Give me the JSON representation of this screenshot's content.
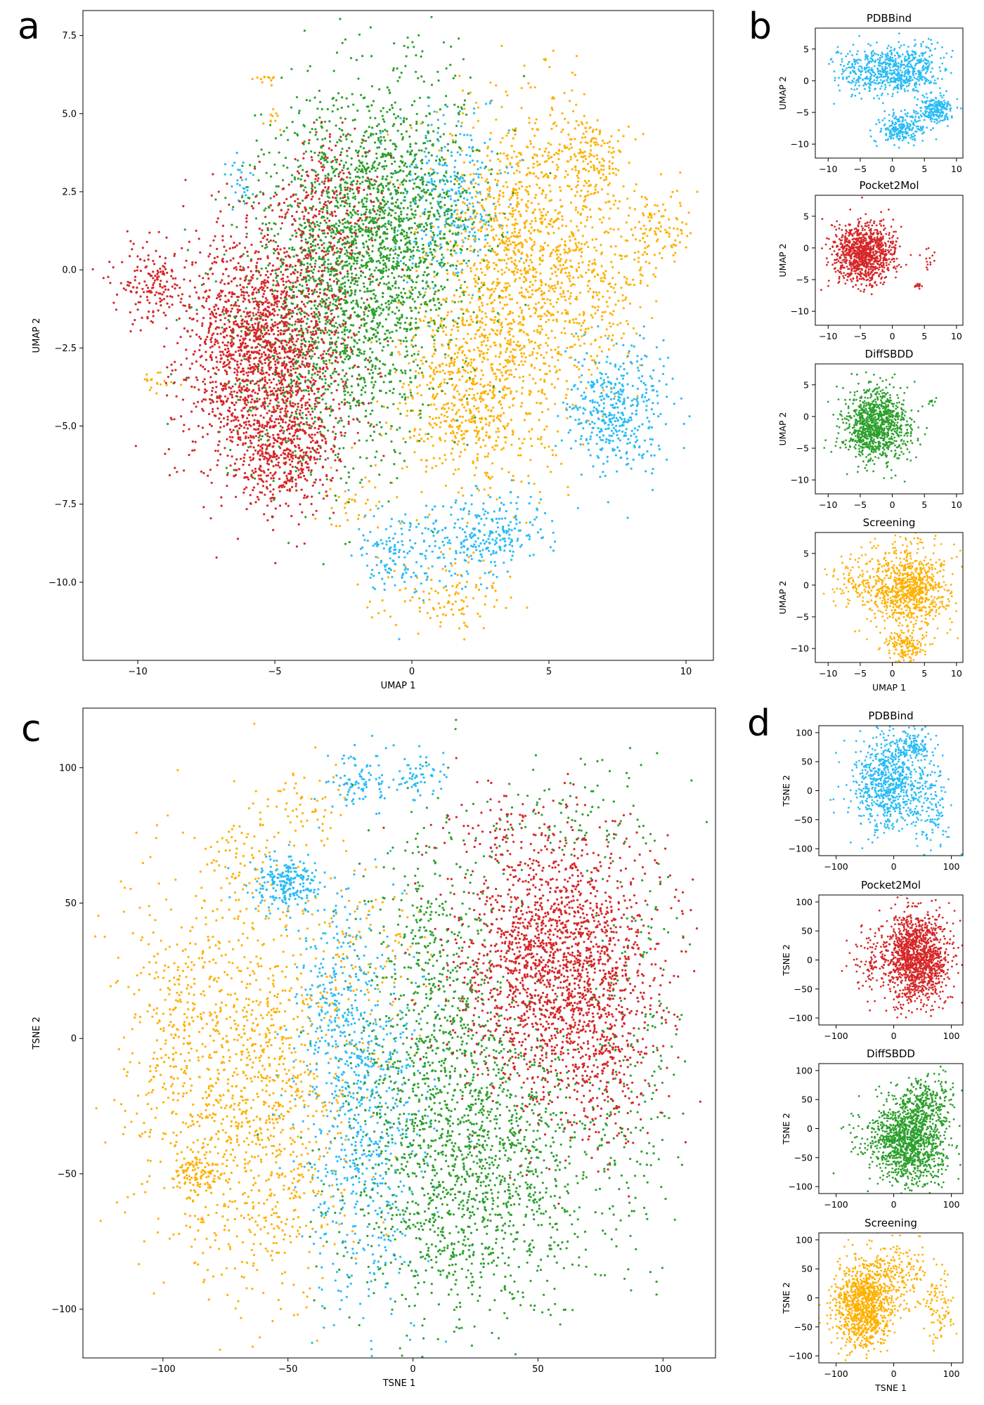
{
  "panel_letters": [
    "a",
    "b",
    "c",
    "d"
  ],
  "palette": {
    "PDBBind": "#29bcf5",
    "Pocket2Mol": "#d62728",
    "DiffSBDD": "#2ca02c",
    "Screening": "#ffb000"
  },
  "chart_data": [
    {
      "id": "a",
      "type": "scatter",
      "title": "",
      "xlabel": "UMAP 1",
      "ylabel": "UMAP 2",
      "xlim": [
        -12,
        11
      ],
      "ylim": [
        -12.5,
        8.3
      ],
      "xticks": [
        -10,
        -5,
        0,
        5,
        10
      ],
      "yticks": [
        -10.0,
        -7.5,
        -5.0,
        -2.5,
        0.0,
        2.5,
        5.0,
        7.5
      ],
      "ytick_decimals": 1,
      "series": [
        {
          "key": "Screening",
          "clusters": [
            {
              "cx": 4.2,
              "cy": 0.6,
              "sx": 1.7,
              "sy": 2.4,
              "n": 1300
            },
            {
              "cx": 2.2,
              "cy": -3.8,
              "sx": 1.4,
              "sy": 1.6,
              "n": 700
            },
            {
              "cx": 6.6,
              "cy": 3.5,
              "sx": 0.6,
              "sy": 0.6,
              "n": 140
            },
            {
              "cx": 9.0,
              "cy": 1.2,
              "sx": 0.6,
              "sy": 0.8,
              "n": 110
            },
            {
              "cx": 7.0,
              "cy": -0.9,
              "sx": 0.8,
              "sy": 1.2,
              "n": 120
            },
            {
              "cx": 1.2,
              "cy": -10.4,
              "sx": 1.2,
              "sy": 0.6,
              "n": 110
            },
            {
              "cx": -2.0,
              "cy": -7.5,
              "sx": 0.8,
              "sy": 0.5,
              "n": 40
            },
            {
              "cx": -9.3,
              "cy": -3.6,
              "sx": 0.3,
              "sy": 0.2,
              "n": 18
            },
            {
              "cx": -5.3,
              "cy": 6.2,
              "sx": 0.2,
              "sy": 0.15,
              "n": 12
            },
            {
              "cx": -5.1,
              "cy": 4.8,
              "sx": 0.2,
              "sy": 0.2,
              "n": 10
            }
          ]
        },
        {
          "key": "PDBBind",
          "clusters": [
            {
              "cx": 7.5,
              "cy": -4.5,
              "sx": 0.9,
              "sy": 1.0,
              "n": 420
            },
            {
              "cx": 2.7,
              "cy": -8.5,
              "sx": 1.1,
              "sy": 0.6,
              "n": 260
            },
            {
              "cx": -0.5,
              "cy": -9.1,
              "sx": 0.9,
              "sy": 0.7,
              "n": 150
            },
            {
              "cx": 1.5,
              "cy": 2.3,
              "sx": 1.0,
              "sy": 1.3,
              "n": 300
            },
            {
              "cx": -6.2,
              "cy": 2.8,
              "sx": 0.4,
              "sy": 0.4,
              "n": 30
            }
          ]
        },
        {
          "key": "DiffSBDD",
          "clusters": [
            {
              "cx": -1.2,
              "cy": 1.5,
              "sx": 1.8,
              "sy": 2.3,
              "n": 1700
            },
            {
              "cx": -3.0,
              "cy": -2.0,
              "sx": 1.9,
              "sy": 2.3,
              "n": 1100
            }
          ]
        },
        {
          "key": "Pocket2Mol",
          "clusters": [
            {
              "cx": -5.4,
              "cy": -2.6,
              "sx": 1.5,
              "sy": 2.0,
              "n": 1900
            },
            {
              "cx": -9.5,
              "cy": -0.4,
              "sx": 0.6,
              "sy": 0.7,
              "n": 160
            },
            {
              "cx": -4.5,
              "cy": -6.0,
              "sx": 1.0,
              "sy": 0.9,
              "n": 380
            },
            {
              "cx": -3.0,
              "cy": 2.0,
              "sx": 1.0,
              "sy": 1.2,
              "n": 250
            }
          ]
        }
      ]
    },
    {
      "id": "b-pdbbind",
      "type": "scatter",
      "title": "PDBBind",
      "xlabel": "",
      "ylabel": "UMAP 2",
      "xlim": [
        -12,
        11
      ],
      "ylim": [
        -12.2,
        8.3
      ],
      "xticks": [
        -10,
        -5,
        0,
        5,
        10
      ],
      "yticks": [
        -10,
        -5,
        0,
        5
      ],
      "series": [
        {
          "key": "PDBBind",
          "clusters": [
            {
              "cx": -1.5,
              "cy": 1.5,
              "sx": 3.5,
              "sy": 2.0,
              "n": 520
            },
            {
              "cx": 7.0,
              "cy": -4.5,
              "sx": 1.3,
              "sy": 1.0,
              "n": 220
            },
            {
              "cx": 1.5,
              "cy": -7.5,
              "sx": 1.8,
              "sy": 1.2,
              "n": 240
            },
            {
              "cx": 4.0,
              "cy": 2.0,
              "sx": 2.0,
              "sy": 2.0,
              "n": 180
            }
          ]
        }
      ]
    },
    {
      "id": "b-pocket2mol",
      "type": "scatter",
      "title": "Pocket2Mol",
      "xlabel": "",
      "ylabel": "UMAP 2",
      "xlim": [
        -12,
        11
      ],
      "ylim": [
        -12.2,
        8.3
      ],
      "xticks": [
        -10,
        -5,
        0,
        5,
        10
      ],
      "yticks": [
        -10,
        -5,
        0,
        5
      ],
      "series": [
        {
          "key": "Pocket2Mol",
          "clusters": [
            {
              "cx": -4.5,
              "cy": -1.0,
              "sx": 2.5,
              "sy": 2.3,
              "n": 1000
            },
            {
              "cx": 4.0,
              "cy": -6.0,
              "sx": 0.3,
              "sy": 0.3,
              "n": 12
            },
            {
              "cx": 5.5,
              "cy": -1.5,
              "sx": 0.6,
              "sy": 0.8,
              "n": 12
            }
          ]
        }
      ]
    },
    {
      "id": "b-diffsbdd",
      "type": "scatter",
      "title": "DiffSBDD",
      "xlabel": "",
      "ylabel": "UMAP 2",
      "xlim": [
        -12,
        11
      ],
      "ylim": [
        -12.2,
        8.3
      ],
      "xticks": [
        -10,
        -5,
        0,
        5,
        10
      ],
      "yticks": [
        -10,
        -5,
        0,
        5
      ],
      "series": [
        {
          "key": "DiffSBDD",
          "clusters": [
            {
              "cx": -2.5,
              "cy": -1.5,
              "sx": 2.6,
              "sy": 2.8,
              "n": 1000
            },
            {
              "cx": 6.0,
              "cy": 2.5,
              "sx": 0.4,
              "sy": 0.3,
              "n": 10
            }
          ]
        }
      ]
    },
    {
      "id": "b-screening",
      "type": "scatter",
      "title": "Screening",
      "xlabel": "UMAP 1",
      "ylabel": "UMAP 2",
      "xlim": [
        -12,
        11
      ],
      "ylim": [
        -12.2,
        8.3
      ],
      "xticks": [
        -10,
        -5,
        0,
        5,
        10
      ],
      "yticks": [
        -10,
        -5,
        0,
        5
      ],
      "series": [
        {
          "key": "Screening",
          "clusters": [
            {
              "cx": 2.5,
              "cy": -0.5,
              "sx": 3.3,
              "sy": 3.3,
              "n": 900
            },
            {
              "cx": -6.0,
              "cy": 1.0,
              "sx": 2.0,
              "sy": 2.0,
              "n": 80
            },
            {
              "cx": 2.0,
              "cy": -9.5,
              "sx": 1.5,
              "sy": 1.2,
              "n": 150
            }
          ]
        }
      ]
    },
    {
      "id": "c",
      "type": "scatter",
      "title": "",
      "xlabel": "TSNE 1",
      "ylabel": "TSNE 2",
      "xlim": [
        -132,
        121
      ],
      "ylim": [
        -118,
        122
      ],
      "xticks": [
        -100,
        -50,
        0,
        50,
        100
      ],
      "yticks": [
        -100,
        -50,
        0,
        50,
        100
      ],
      "series": [
        {
          "key": "Screening",
          "clusters": [
            {
              "cx": -62,
              "cy": -20,
              "sx": 18,
              "sy": 38,
              "n": 1100
            },
            {
              "cx": -95,
              "cy": 0,
              "sx": 12,
              "sy": 32,
              "n": 300
            },
            {
              "cx": -88,
              "cy": -50,
              "sx": 4,
              "sy": 4,
              "n": 90
            },
            {
              "cx": -70,
              "cy": 65,
              "sx": 8,
              "sy": 8,
              "n": 60
            },
            {
              "cx": -45,
              "cy": 85,
              "sx": 10,
              "sy": 8,
              "n": 60
            },
            {
              "cx": -20,
              "cy": 30,
              "sx": 14,
              "sy": 20,
              "n": 120
            }
          ]
        },
        {
          "key": "PDBBind",
          "clusters": [
            {
              "cx": -20,
              "cy": -30,
              "sx": 12,
              "sy": 35,
              "n": 700
            },
            {
              "cx": -50,
              "cy": 57,
              "sx": 7,
              "sy": 5,
              "n": 230
            },
            {
              "cx": -22,
              "cy": 95,
              "sx": 6,
              "sy": 6,
              "n": 90
            },
            {
              "cx": 3,
              "cy": 97,
              "sx": 5,
              "sy": 4,
              "n": 60
            },
            {
              "cx": -32,
              "cy": 20,
              "sx": 8,
              "sy": 15,
              "n": 160
            }
          ]
        },
        {
          "key": "DiffSBDD",
          "clusters": [
            {
              "cx": 25,
              "cy": -45,
              "sx": 25,
              "sy": 30,
              "n": 1600
            },
            {
              "cx": 10,
              "cy": 20,
              "sx": 15,
              "sy": 30,
              "n": 500
            },
            {
              "cx": 90,
              "cy": 0,
              "sx": 10,
              "sy": 40,
              "n": 180
            },
            {
              "cx": 60,
              "cy": 80,
              "sx": 20,
              "sy": 10,
              "n": 100
            }
          ]
        },
        {
          "key": "Pocket2Mol",
          "clusters": [
            {
              "cx": 58,
              "cy": 28,
              "sx": 20,
              "sy": 24,
              "n": 1900
            },
            {
              "cx": 75,
              "cy": -15,
              "sx": 12,
              "sy": 15,
              "n": 200
            },
            {
              "cx": 35,
              "cy": 78,
              "sx": 15,
              "sy": 8,
              "n": 60
            }
          ]
        }
      ]
    },
    {
      "id": "d-pdbbind",
      "type": "scatter",
      "title": "PDBBind",
      "xlabel": "",
      "ylabel": "TSNE 2",
      "xlim": [
        -130,
        120
      ],
      "ylim": [
        -112,
        112
      ],
      "xticks": [
        -100,
        0,
        100
      ],
      "yticks": [
        -100,
        -50,
        0,
        50,
        100
      ],
      "series": [
        {
          "key": "PDBBind",
          "clusters": [
            {
              "cx": -10,
              "cy": 10,
              "sx": 30,
              "sy": 40,
              "n": 700
            },
            {
              "cx": 30,
              "cy": 80,
              "sx": 20,
              "sy": 15,
              "n": 150
            },
            {
              "cx": 60,
              "cy": -20,
              "sx": 20,
              "sy": 40,
              "n": 150
            }
          ]
        }
      ]
    },
    {
      "id": "d-pocket2mol",
      "type": "scatter",
      "title": "Pocket2Mol",
      "xlabel": "",
      "ylabel": "TSNE 2",
      "xlim": [
        -130,
        120
      ],
      "ylim": [
        -112,
        112
      ],
      "xticks": [
        -100,
        0,
        100
      ],
      "yticks": [
        -100,
        -50,
        0,
        50,
        100
      ],
      "series": [
        {
          "key": "Pocket2Mol",
          "clusters": [
            {
              "cx": 40,
              "cy": 5,
              "sx": 28,
              "sy": 38,
              "n": 1300
            },
            {
              "cx": -40,
              "cy": 0,
              "sx": 22,
              "sy": 25,
              "n": 90
            }
          ]
        }
      ]
    },
    {
      "id": "d-diffsbdd",
      "type": "scatter",
      "title": "DiffSBDD",
      "xlabel": "",
      "ylabel": "TSNE 2",
      "xlim": [
        -130,
        120
      ],
      "ylim": [
        -112,
        112
      ],
      "xticks": [
        -100,
        0,
        100
      ],
      "yticks": [
        -100,
        -50,
        0,
        50,
        100
      ],
      "series": [
        {
          "key": "DiffSBDD",
          "clusters": [
            {
              "cx": 30,
              "cy": -20,
              "sx": 30,
              "sy": 40,
              "n": 1200
            },
            {
              "cx": -40,
              "cy": -20,
              "sx": 25,
              "sy": 25,
              "n": 100
            },
            {
              "cx": 60,
              "cy": 50,
              "sx": 20,
              "sy": 20,
              "n": 150
            }
          ]
        }
      ]
    },
    {
      "id": "d-screening",
      "type": "scatter",
      "title": "Screening",
      "xlabel": "TSNE 1",
      "ylabel": "TSNE 2",
      "xlim": [
        -130,
        120
      ],
      "ylim": [
        -112,
        112
      ],
      "xticks": [
        -100,
        0,
        100
      ],
      "yticks": [
        -100,
        -50,
        0,
        50,
        100
      ],
      "series": [
        {
          "key": "Screening",
          "clusters": [
            {
              "cx": -55,
              "cy": -15,
              "sx": 25,
              "sy": 35,
              "n": 1000
            },
            {
              "cx": 0,
              "cy": 40,
              "sx": 30,
              "sy": 30,
              "n": 250
            },
            {
              "cx": 80,
              "cy": -20,
              "sx": 15,
              "sy": 30,
              "n": 90
            }
          ]
        }
      ]
    }
  ]
}
